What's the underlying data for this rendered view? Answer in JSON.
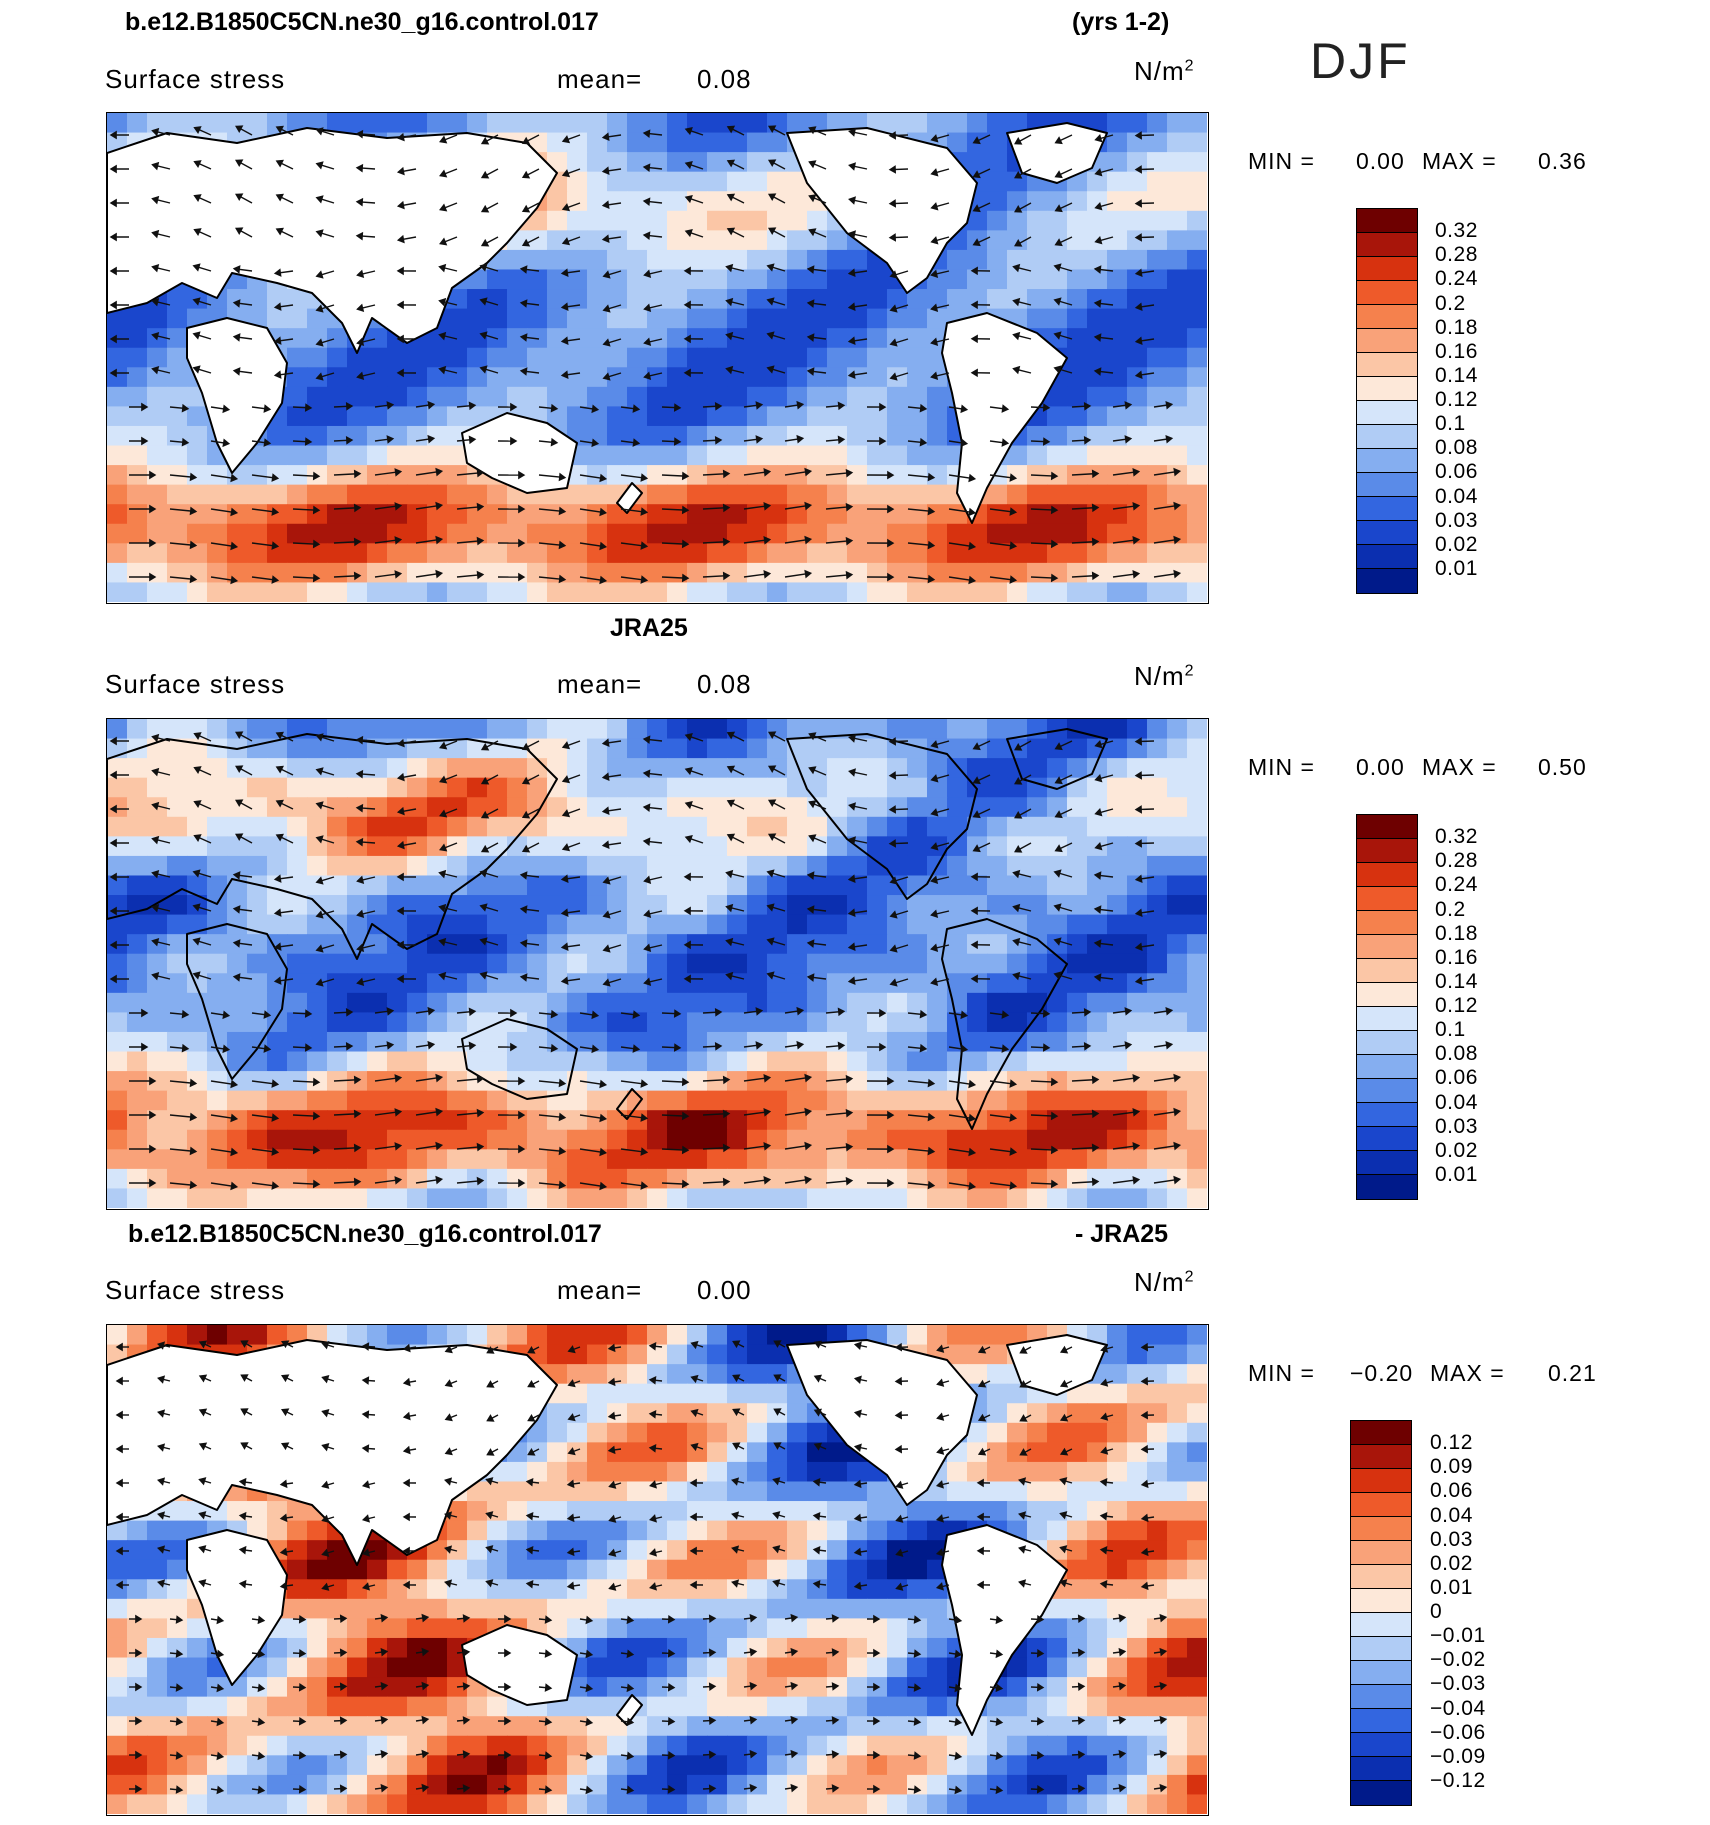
{
  "season_label": "DJF",
  "colors": {
    "ocean_blue_dark": "#0a2fb8",
    "ocean_blue_mid": "#2b5fe0",
    "ocean_blue_light": "#9fc0f2",
    "red_mid": "#e2552b",
    "peach": "#f7c2a4",
    "land": "#ffffff",
    "coast": "#000000"
  },
  "panels": [
    {
      "title_left": "b.e12.B1850C5CN.ne30_g16.control.017",
      "title_right": "(yrs 1-2)",
      "field_label": "Surface stress",
      "mean_label": "mean=",
      "mean_value": "0.08",
      "units_text": "N/m",
      "units_exp": "2",
      "min_label": "MIN =",
      "min_value": "0.00",
      "max_label": "MAX =",
      "max_value": "0.36",
      "colorbar": {
        "labels": [
          "0.32",
          "0.28",
          "0.24",
          "0.2",
          "0.18",
          "0.16",
          "0.14",
          "0.12",
          "0.1",
          "0.08",
          "0.06",
          "0.04",
          "0.03",
          "0.02",
          "0.01"
        ],
        "colors": [
          "#6e0000",
          "#a8150a",
          "#d7320f",
          "#ee5a2a",
          "#f5814d",
          "#f9a279",
          "#fbc6a6",
          "#fde8d9",
          "#d5e5fa",
          "#b0ccf5",
          "#85aef0",
          "#5a8be8",
          "#3366e0",
          "#1a46cc",
          "#0b2fb0",
          "#001a8a"
        ]
      }
    },
    {
      "title_left": "",
      "title_center": "JRA25",
      "title_right": "",
      "field_label": "Surface stress",
      "mean_label": "mean=",
      "mean_value": "0.08",
      "units_text": "N/m",
      "units_exp": "2",
      "min_label": "MIN =",
      "min_value": "0.00",
      "max_label": "MAX =",
      "max_value": "0.50",
      "colorbar": {
        "labels": [
          "0.32",
          "0.28",
          "0.24",
          "0.2",
          "0.18",
          "0.16",
          "0.14",
          "0.12",
          "0.1",
          "0.08",
          "0.06",
          "0.04",
          "0.03",
          "0.02",
          "0.01"
        ],
        "colors": [
          "#6e0000",
          "#a8150a",
          "#d7320f",
          "#ee5a2a",
          "#f5814d",
          "#f9a279",
          "#fbc6a6",
          "#fde8d9",
          "#d5e5fa",
          "#b0ccf5",
          "#85aef0",
          "#5a8be8",
          "#3366e0",
          "#1a46cc",
          "#0b2fb0",
          "#001a8a"
        ]
      }
    },
    {
      "title_left": "b.e12.B1850C5CN.ne30_g16.control.017",
      "title_right": "- JRA25",
      "field_label": "Surface stress",
      "mean_label": "mean=",
      "mean_value": "0.00",
      "units_text": "N/m",
      "units_exp": "2",
      "min_label": "MIN =",
      "min_value": "−0.20",
      "max_label": "MAX =",
      "max_value": "0.21",
      "colorbar": {
        "labels": [
          "0.12",
          "0.09",
          "0.06",
          "0.04",
          "0.03",
          "0.02",
          "0.01",
          "0",
          "−0.01",
          "−0.02",
          "−0.03",
          "−0.04",
          "−0.06",
          "−0.09",
          "−0.12"
        ],
        "colors": [
          "#6e0000",
          "#a8150a",
          "#d7320f",
          "#ee5a2a",
          "#f5814d",
          "#f9a279",
          "#fbc6a6",
          "#fde8d9",
          "#d5e5fa",
          "#b0ccf5",
          "#85aef0",
          "#5a8be8",
          "#3366e0",
          "#1a46cc",
          "#0b2fb0",
          "#001a8a"
        ]
      }
    }
  ]
}
